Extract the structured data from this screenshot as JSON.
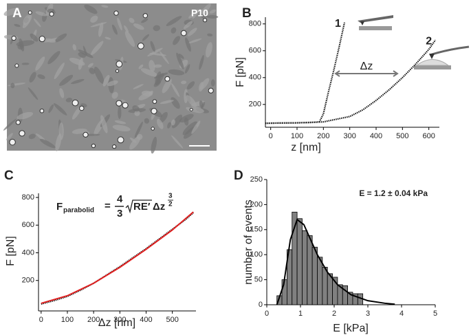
{
  "image_panel": {
    "label": "A",
    "tag": "P10"
  },
  "chart_data": [
    {
      "type": "line",
      "panel_label": "B",
      "xlabel": "z [nm]",
      "ylabel": "F [pN]",
      "xlim": [
        -20,
        640
      ],
      "ylim": [
        30,
        850
      ],
      "xticks": [
        0,
        100,
        200,
        300,
        400,
        500,
        600
      ],
      "yticks": [
        200,
        400,
        600,
        800
      ],
      "annotation": "Δz",
      "series": [
        {
          "name": "1",
          "color": "#111111",
          "linestyle": "dotted",
          "x": [
            -20,
            50,
            100,
            150,
            185,
            200,
            220,
            240,
            260,
            280
          ],
          "values": [
            60,
            62,
            63,
            65,
            70,
            130,
            300,
            460,
            630,
            810
          ]
        },
        {
          "name": "2",
          "color": "#111111",
          "linestyle": "dotted",
          "x": [
            -20,
            100,
            200,
            300,
            350,
            400,
            450,
            500,
            550,
            600,
            625
          ],
          "values": [
            60,
            63,
            70,
            110,
            160,
            230,
            310,
            400,
            500,
            610,
            680
          ]
        }
      ]
    },
    {
      "type": "line",
      "panel_label": "C",
      "xlabel": "Δz [nm]",
      "ylabel": "F [pN]",
      "xlim": [
        -10,
        590
      ],
      "ylim": [
        -20,
        830
      ],
      "xticks": [
        0,
        100,
        200,
        300,
        400,
        500
      ],
      "yticks": [
        200,
        400,
        600,
        800
      ],
      "formula": {
        "lhs": "F",
        "lhs_sub": "parabolid",
        "eq": "=",
        "numerator": "4",
        "denominator": "3",
        "root": "RE′",
        "term": "Δz",
        "exp_num": "3",
        "exp_den": "2"
      },
      "series": [
        {
          "color": "#111111",
          "linestyle": "dotted",
          "x": [
            0,
            50,
            100,
            150,
            200,
            250,
            300,
            350,
            400,
            450,
            500,
            550,
            580
          ],
          "values": [
            30,
            55,
            85,
            130,
            180,
            240,
            300,
            365,
            430,
            500,
            570,
            640,
            690
          ]
        },
        {
          "color": "#e02020",
          "linestyle": "solid",
          "x": [
            0,
            100,
            200,
            300,
            400,
            500,
            580
          ],
          "values": [
            35,
            90,
            180,
            295,
            425,
            565,
            695
          ]
        }
      ]
    },
    {
      "type": "histogram",
      "panel_label": "D",
      "xlabel": "E [kPa]",
      "ylabel": "number of events",
      "xlim": [
        0,
        5
      ],
      "ylim": [
        0,
        250
      ],
      "xticks": [
        0,
        1,
        2,
        3,
        4,
        5
      ],
      "yticks": [
        0,
        50,
        100,
        150,
        200,
        250
      ],
      "annotation": "E = 1.2 ± 0.04 kPa",
      "color": "#808080",
      "bins": [
        0.3,
        0.45,
        0.6,
        0.75,
        0.9,
        1.05,
        1.2,
        1.35,
        1.5,
        1.65,
        1.8,
        1.95,
        2.1,
        2.25,
        2.4,
        2.55,
        2.7,
        2.85
      ],
      "counts": [
        18,
        50,
        110,
        185,
        172,
        148,
        138,
        115,
        95,
        75,
        62,
        55,
        40,
        38,
        25,
        22,
        22
      ],
      "fit": {
        "color": "#000000",
        "x": [
          0.3,
          0.5,
          0.7,
          0.9,
          1.1,
          1.3,
          1.5,
          1.8,
          2.1,
          2.5,
          3.0,
          3.5,
          3.8
        ],
        "values": [
          0,
          40,
          130,
          170,
          160,
          130,
          100,
          65,
          40,
          20,
          8,
          3,
          1
        ]
      }
    }
  ]
}
